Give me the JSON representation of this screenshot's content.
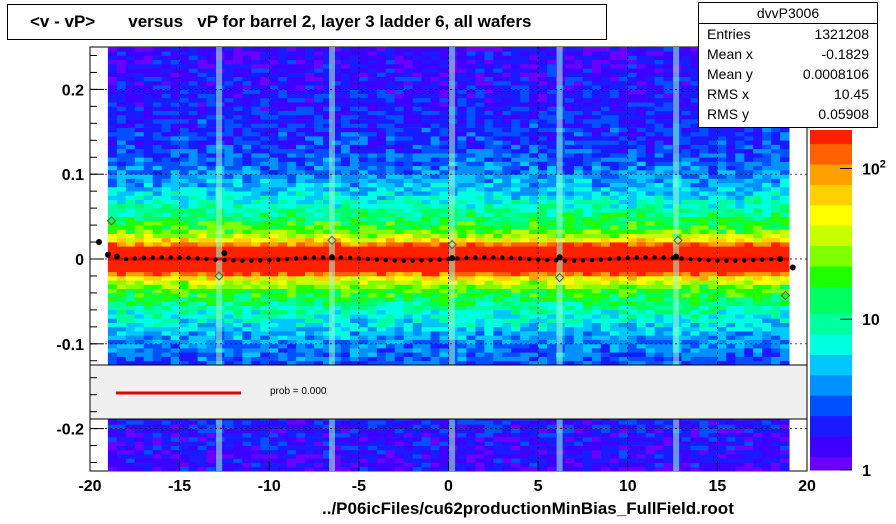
{
  "title": "<v - vP>       versus   vP for barrel 2, layer 3 ladder 6, all wafers",
  "stats": {
    "name": "dvvP3006",
    "rows": [
      {
        "label": "Entries",
        "value": "1321208"
      },
      {
        "label": "Mean x",
        "value": "-0.1829"
      },
      {
        "label": "Mean y",
        "value": "0.0008106"
      },
      {
        "label": "RMS x",
        "value": "10.45"
      },
      {
        "label": "RMS y",
        "value": "0.05908"
      }
    ]
  },
  "fit_legend": {
    "label": "prob = 0.000",
    "color": "#e00000"
  },
  "footer": "../P06icFiles/cu62productionMinBias_FullField.root",
  "chart_data": {
    "type": "heatmap",
    "title": "<v - vP>       versus   vP for barrel 2, layer 3 ladder 6, all wafers",
    "xlim": [
      -20,
      20
    ],
    "ylim": [
      -0.25,
      0.25
    ],
    "x_ticks": [
      "-20",
      "-15",
      "-10",
      "-5",
      "0",
      "5",
      "10",
      "15",
      "20"
    ],
    "y_ticks": [
      "0.2",
      "0.1",
      "0",
      "-0.1",
      "-0.2"
    ],
    "y_tick_values": [
      0.2,
      0.1,
      0,
      -0.1,
      -0.2
    ],
    "colorbar": {
      "scale": "log",
      "labels": [
        "1",
        "10",
        "10^2"
      ],
      "label_values": [
        1,
        10,
        100
      ]
    },
    "gaps_x": [
      -12.8,
      -6.5,
      0.2,
      6.2,
      12.7
    ],
    "grid": "dashed",
    "profile_points": [
      {
        "x": -19.5,
        "y": 0.02
      },
      {
        "x": -19.0,
        "y": 0.005
      },
      {
        "x": -18.5,
        "y": 0.003
      },
      {
        "x": -12.5,
        "y": 0.007
      },
      {
        "x": -6.5,
        "y": 0.002
      },
      {
        "x": 0.2,
        "y": 0.001
      },
      {
        "x": 6.2,
        "y": 0.002
      },
      {
        "x": 12.7,
        "y": 0.003
      },
      {
        "x": 18.5,
        "y": 0.0
      },
      {
        "x": 19.2,
        "y": -0.01
      }
    ],
    "mean_points": [
      {
        "x": -18.8,
        "y": 0.045
      },
      {
        "x": -12.8,
        "y": -0.02
      },
      {
        "x": -6.5,
        "y": 0.022
      },
      {
        "x": 0.2,
        "y": 0.017
      },
      {
        "x": 6.2,
        "y": -0.022
      },
      {
        "x": 12.8,
        "y": 0.022
      },
      {
        "x": 18.8,
        "y": -0.043
      }
    ],
    "fit_line": {
      "x": [
        -19,
        19
      ],
      "y": [
        0.0,
        0.0
      ]
    }
  }
}
